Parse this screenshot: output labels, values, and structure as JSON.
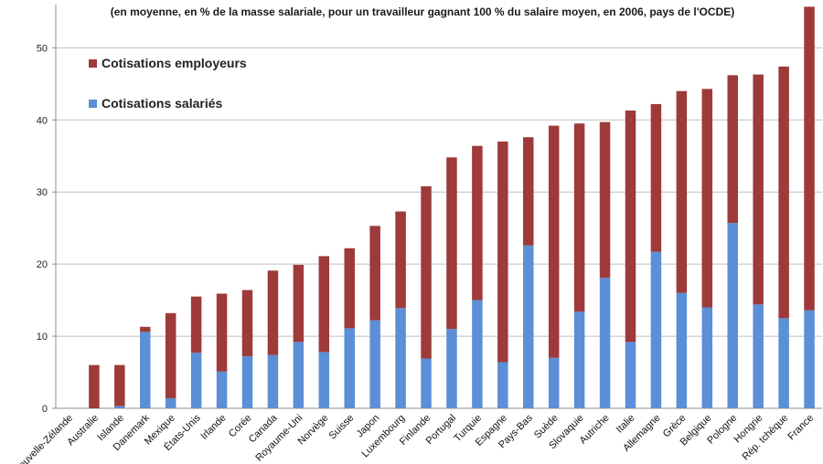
{
  "chart_data": {
    "type": "bar",
    "stacked": true,
    "title": "",
    "subtitle": "(en moyenne, en % de la masse salariale, pour un travailleur gagnant 100 % du salaire moyen, en 2006, pays de l'OCDE)",
    "xlabel": "",
    "ylabel": "",
    "ylim": [
      0,
      56
    ],
    "yticks": [
      0,
      10,
      20,
      30,
      40,
      50
    ],
    "grid": true,
    "legend_position": "top-left",
    "categories": [
      "Nouvelle-Zélande",
      "Australie",
      "Islande",
      "Danemark",
      "Mexique",
      "États-Unis",
      "Irlande",
      "Corée",
      "Canada",
      "Royaume-Uni",
      "Norvège",
      "Suisse",
      "Japon",
      "Luxembourg",
      "Finlande",
      "Portugal",
      "Turquie",
      "Espagne",
      "Pays-Bas",
      "Suède",
      "Slovaquie",
      "Autriche",
      "Italie",
      "Allemagne",
      "Grèce",
      "Belgique",
      "Pologne",
      "Hongrie",
      "Rép. tchèque",
      "France"
    ],
    "series": [
      {
        "name": "Cotisations salariés",
        "color": "#5b8fd6",
        "values": [
          0,
          0,
          0.3,
          10.6,
          1.4,
          7.7,
          5.1,
          7.2,
          7.4,
          9.2,
          7.8,
          11.1,
          12.2,
          13.9,
          6.9,
          11.0,
          15.0,
          6.4,
          22.6,
          7.0,
          13.4,
          18.1,
          9.2,
          21.7,
          16.0,
          14.0,
          25.7,
          14.4,
          12.5,
          13.6
        ]
      },
      {
        "name": "Cotisations employeurs",
        "color": "#9e3a3a",
        "values": [
          0,
          6.0,
          5.7,
          0.7,
          11.8,
          7.8,
          10.8,
          9.2,
          11.7,
          10.7,
          13.3,
          11.1,
          13.1,
          13.4,
          23.9,
          23.8,
          21.4,
          30.6,
          15.0,
          32.2,
          26.1,
          21.6,
          32.1,
          20.5,
          28.0,
          30.3,
          20.5,
          31.9,
          34.9,
          42.1
        ]
      }
    ]
  }
}
